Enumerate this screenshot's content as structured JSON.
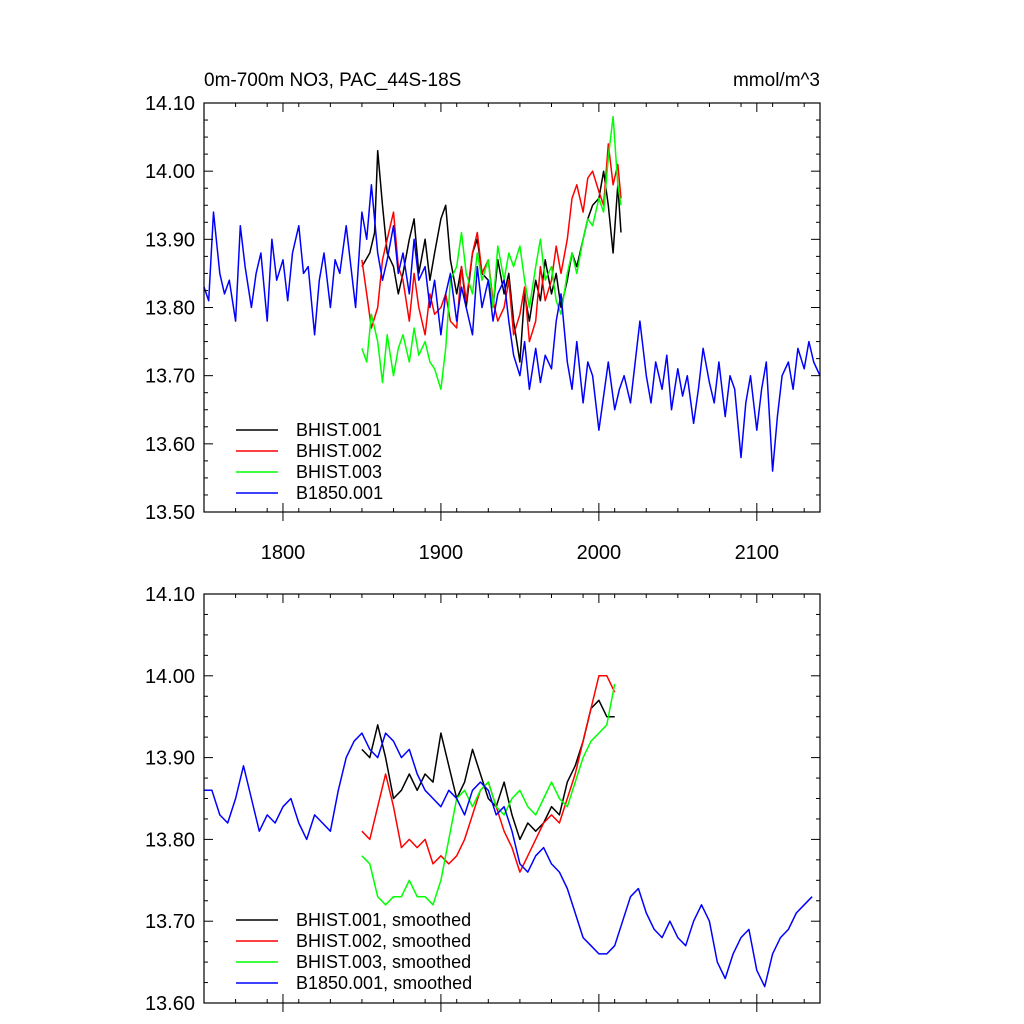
{
  "chart_data": [
    {
      "type": "line",
      "title": "0m-700m NO3, PAC_44S-18S",
      "units": "mmol/m^3",
      "xlim": [
        1750,
        2140
      ],
      "ylim": [
        13.5,
        14.1
      ],
      "xticks": [
        1800,
        1900,
        2000,
        2100
      ],
      "xticklabels": [
        "1800",
        "1900",
        "2000",
        "2100"
      ],
      "yticks": [
        13.5,
        13.6,
        13.7,
        13.8,
        13.9,
        14.0,
        14.1
      ],
      "yticklabels": [
        "13.50",
        "13.60",
        "13.70",
        "13.80",
        "13.90",
        "14.00",
        "14.10"
      ],
      "legend_position": "bottom-left",
      "series": [
        {
          "name": "BHIST.001",
          "color": "#000000",
          "x": [
            1850,
            1855,
            1858,
            1860,
            1863,
            1866,
            1870,
            1873,
            1876,
            1880,
            1883,
            1886,
            1890,
            1893,
            1896,
            1900,
            1903,
            1906,
            1910,
            1913,
            1916,
            1920,
            1923,
            1926,
            1930,
            1933,
            1936,
            1940,
            1943,
            1946,
            1950,
            1953,
            1956,
            1960,
            1963,
            1966,
            1970,
            1973,
            1976,
            1980,
            1983,
            1986,
            1990,
            1993,
            1996,
            2000,
            2003,
            2006,
            2009,
            2012,
            2014
          ],
          "values": [
            13.86,
            13.88,
            13.91,
            14.03,
            13.95,
            13.88,
            13.86,
            13.82,
            13.85,
            13.9,
            13.93,
            13.85,
            13.9,
            13.84,
            13.88,
            13.93,
            13.95,
            13.87,
            13.82,
            13.86,
            13.8,
            13.88,
            13.9,
            13.85,
            13.84,
            13.8,
            13.87,
            13.82,
            13.85,
            13.78,
            13.72,
            13.82,
            13.78,
            13.84,
            13.81,
            13.87,
            13.82,
            13.85,
            13.8,
            13.84,
            13.88,
            13.86,
            13.9,
            13.93,
            13.95,
            13.96,
            14.0,
            13.95,
            13.88,
            13.98,
            13.91
          ]
        },
        {
          "name": "BHIST.002",
          "color": "#ff0000",
          "x": [
            1850,
            1853,
            1856,
            1860,
            1863,
            1866,
            1870,
            1873,
            1876,
            1880,
            1883,
            1886,
            1890,
            1893,
            1896,
            1900,
            1903,
            1906,
            1910,
            1913,
            1916,
            1920,
            1923,
            1926,
            1930,
            1933,
            1936,
            1940,
            1943,
            1946,
            1950,
            1953,
            1956,
            1960,
            1963,
            1966,
            1970,
            1973,
            1976,
            1980,
            1983,
            1986,
            1990,
            1993,
            1996,
            2000,
            2003,
            2006,
            2009,
            2012,
            2014
          ],
          "values": [
            13.87,
            13.82,
            13.77,
            13.8,
            13.87,
            13.9,
            13.94,
            13.86,
            13.84,
            13.78,
            13.85,
            13.8,
            13.76,
            13.82,
            13.79,
            13.8,
            13.82,
            13.78,
            13.77,
            13.86,
            13.81,
            13.88,
            13.91,
            13.85,
            13.87,
            13.81,
            13.78,
            13.8,
            13.84,
            13.76,
            13.79,
            13.83,
            13.75,
            13.78,
            13.86,
            13.81,
            13.84,
            13.89,
            13.85,
            13.9,
            13.96,
            13.98,
            13.94,
            13.99,
            14.0,
            13.97,
            13.95,
            14.04,
            13.98,
            14.01,
            13.96
          ]
        },
        {
          "name": "BHIST.003",
          "color": "#00ff00",
          "x": [
            1850,
            1853,
            1856,
            1860,
            1863,
            1866,
            1870,
            1873,
            1876,
            1880,
            1883,
            1886,
            1890,
            1893,
            1896,
            1900,
            1903,
            1906,
            1910,
            1913,
            1916,
            1920,
            1923,
            1926,
            1930,
            1933,
            1936,
            1940,
            1943,
            1946,
            1950,
            1953,
            1956,
            1960,
            1963,
            1966,
            1970,
            1973,
            1976,
            1980,
            1983,
            1986,
            1990,
            1993,
            1996,
            2000,
            2003,
            2006,
            2009,
            2012,
            2014
          ],
          "values": [
            13.74,
            13.72,
            13.79,
            13.75,
            13.69,
            13.76,
            13.7,
            13.74,
            13.76,
            13.72,
            13.77,
            13.73,
            13.75,
            13.72,
            13.71,
            13.68,
            13.74,
            13.84,
            13.86,
            13.91,
            13.85,
            13.82,
            13.88,
            13.84,
            13.87,
            13.8,
            13.89,
            13.84,
            13.88,
            13.86,
            13.89,
            13.84,
            13.8,
            13.86,
            13.9,
            13.84,
            13.86,
            13.81,
            13.79,
            13.85,
            13.88,
            13.85,
            13.9,
            13.93,
            13.92,
            13.96,
            13.94,
            14.02,
            14.08,
            13.98,
            13.95
          ]
        },
        {
          "name": "B1850.001",
          "color": "#0000ff",
          "x": [
            1750,
            1753,
            1756,
            1760,
            1763,
            1766,
            1770,
            1773,
            1776,
            1780,
            1783,
            1786,
            1790,
            1793,
            1796,
            1800,
            1803,
            1806,
            1810,
            1813,
            1816,
            1820,
            1823,
            1826,
            1830,
            1833,
            1836,
            1840,
            1843,
            1846,
            1850,
            1853,
            1856,
            1860,
            1863,
            1866,
            1870,
            1873,
            1876,
            1880,
            1883,
            1886,
            1890,
            1893,
            1896,
            1900,
            1903,
            1906,
            1910,
            1913,
            1916,
            1920,
            1923,
            1926,
            1930,
            1933,
            1936,
            1940,
            1943,
            1946,
            1950,
            1953,
            1956,
            1960,
            1963,
            1966,
            1970,
            1973,
            1976,
            1980,
            1983,
            1986,
            1990,
            1993,
            1996,
            2000,
            2003,
            2006,
            2010,
            2013,
            2016,
            2020,
            2023,
            2026,
            2030,
            2033,
            2036,
            2040,
            2043,
            2046,
            2050,
            2053,
            2056,
            2060,
            2063,
            2066,
            2070,
            2073,
            2076,
            2080,
            2083,
            2086,
            2090,
            2093,
            2096,
            2100,
            2103,
            2106,
            2110,
            2113,
            2116,
            2120,
            2123,
            2126,
            2130,
            2133,
            2136,
            2140
          ],
          "values": [
            13.83,
            13.81,
            13.94,
            13.85,
            13.82,
            13.84,
            13.78,
            13.92,
            13.86,
            13.8,
            13.85,
            13.88,
            13.78,
            13.9,
            13.84,
            13.87,
            13.81,
            13.88,
            13.92,
            13.85,
            13.86,
            13.76,
            13.84,
            13.88,
            13.8,
            13.87,
            13.85,
            13.92,
            13.86,
            13.8,
            13.94,
            13.9,
            13.98,
            13.88,
            13.84,
            13.87,
            13.92,
            13.85,
            13.88,
            13.82,
            13.9,
            13.84,
            13.86,
            13.8,
            13.84,
            13.76,
            13.82,
            13.85,
            13.78,
            13.83,
            13.8,
            13.76,
            13.86,
            13.8,
            13.84,
            13.78,
            13.82,
            13.84,
            13.78,
            13.73,
            13.7,
            13.75,
            13.68,
            13.74,
            13.69,
            13.73,
            13.71,
            13.78,
            13.82,
            13.72,
            13.68,
            13.75,
            13.66,
            13.72,
            13.7,
            13.62,
            13.67,
            13.72,
            13.65,
            13.68,
            13.7,
            13.66,
            13.72,
            13.78,
            13.7,
            13.66,
            13.72,
            13.68,
            13.73,
            13.65,
            13.71,
            13.67,
            13.7,
            13.63,
            13.68,
            13.74,
            13.69,
            13.66,
            13.72,
            13.64,
            13.7,
            13.68,
            13.58,
            13.66,
            13.7,
            13.62,
            13.68,
            13.72,
            13.56,
            13.64,
            13.7,
            13.72,
            13.68,
            13.74,
            13.71,
            13.75,
            13.72,
            13.7
          ]
        }
      ]
    },
    {
      "type": "line",
      "title": "",
      "xlim": [
        1750,
        2140
      ],
      "ylim": [
        13.6,
        14.1
      ],
      "yticks": [
        13.6,
        13.7,
        13.8,
        13.9,
        14.0,
        14.1
      ],
      "yticklabels": [
        "13.60",
        "13.70",
        "13.80",
        "13.90",
        "14.00",
        "14.10"
      ],
      "xticks": [
        1800,
        1900,
        2000,
        2100
      ],
      "legend_position": "bottom-left",
      "series": [
        {
          "name": "BHIST.001, smoothed",
          "color": "#000000",
          "x": [
            1850,
            1855,
            1860,
            1865,
            1870,
            1875,
            1880,
            1885,
            1890,
            1895,
            1900,
            1905,
            1910,
            1915,
            1920,
            1925,
            1930,
            1935,
            1940,
            1945,
            1950,
            1955,
            1960,
            1965,
            1970,
            1975,
            1980,
            1985,
            1990,
            1995,
            2000,
            2005,
            2010
          ],
          "values": [
            13.91,
            13.9,
            13.94,
            13.9,
            13.85,
            13.86,
            13.88,
            13.86,
            13.88,
            13.87,
            13.93,
            13.89,
            13.85,
            13.87,
            13.91,
            13.88,
            13.85,
            13.84,
            13.87,
            13.83,
            13.8,
            13.82,
            13.81,
            13.82,
            13.84,
            13.83,
            13.87,
            13.89,
            13.92,
            13.96,
            13.97,
            13.95,
            13.95
          ]
        },
        {
          "name": "BHIST.002, smoothed",
          "color": "#ff0000",
          "x": [
            1850,
            1855,
            1860,
            1865,
            1870,
            1875,
            1880,
            1885,
            1890,
            1895,
            1900,
            1905,
            1910,
            1915,
            1920,
            1925,
            1930,
            1935,
            1940,
            1945,
            1950,
            1955,
            1960,
            1965,
            1970,
            1975,
            1980,
            1985,
            1990,
            1995,
            2000,
            2005,
            2010
          ],
          "values": [
            13.81,
            13.8,
            13.84,
            13.88,
            13.84,
            13.79,
            13.8,
            13.79,
            13.8,
            13.77,
            13.78,
            13.77,
            13.78,
            13.8,
            13.83,
            13.86,
            13.87,
            13.84,
            13.81,
            13.79,
            13.76,
            13.78,
            13.8,
            13.82,
            13.83,
            13.82,
            13.85,
            13.88,
            13.92,
            13.96,
            14.0,
            14.0,
            13.98
          ]
        },
        {
          "name": "BHIST.003, smoothed",
          "color": "#00ff00",
          "x": [
            1850,
            1855,
            1860,
            1865,
            1870,
            1875,
            1880,
            1885,
            1890,
            1895,
            1900,
            1905,
            1910,
            1915,
            1920,
            1925,
            1930,
            1935,
            1940,
            1945,
            1950,
            1955,
            1960,
            1965,
            1970,
            1975,
            1980,
            1985,
            1990,
            1995,
            2000,
            2005,
            2010
          ],
          "values": [
            13.78,
            13.77,
            13.73,
            13.72,
            13.73,
            13.73,
            13.75,
            13.73,
            13.73,
            13.72,
            13.75,
            13.8,
            13.85,
            13.86,
            13.84,
            13.86,
            13.87,
            13.84,
            13.83,
            13.85,
            13.86,
            13.84,
            13.83,
            13.85,
            13.87,
            13.85,
            13.84,
            13.87,
            13.9,
            13.92,
            13.93,
            13.94,
            13.99
          ]
        },
        {
          "name": "B1850.001, smoothed",
          "color": "#0000ff",
          "x": [
            1750,
            1755,
            1760,
            1765,
            1770,
            1775,
            1780,
            1785,
            1790,
            1795,
            1800,
            1805,
            1810,
            1815,
            1820,
            1825,
            1830,
            1835,
            1840,
            1845,
            1850,
            1855,
            1860,
            1865,
            1870,
            1875,
            1880,
            1885,
            1890,
            1895,
            1900,
            1905,
            1910,
            1915,
            1920,
            1925,
            1930,
            1935,
            1940,
            1945,
            1950,
            1955,
            1960,
            1965,
            1970,
            1975,
            1980,
            1985,
            1990,
            1995,
            2000,
            2005,
            2010,
            2015,
            2020,
            2025,
            2030,
            2035,
            2040,
            2045,
            2050,
            2055,
            2060,
            2065,
            2070,
            2075,
            2080,
            2085,
            2090,
            2095,
            2100,
            2105,
            2110,
            2115,
            2120,
            2125,
            2130,
            2135
          ],
          "values": [
            13.86,
            13.86,
            13.83,
            13.82,
            13.85,
            13.89,
            13.85,
            13.81,
            13.83,
            13.82,
            13.84,
            13.85,
            13.82,
            13.8,
            13.83,
            13.82,
            13.81,
            13.86,
            13.9,
            13.92,
            13.93,
            13.91,
            13.9,
            13.93,
            13.92,
            13.9,
            13.91,
            13.88,
            13.86,
            13.85,
            13.84,
            13.86,
            13.85,
            13.83,
            13.86,
            13.87,
            13.86,
            13.83,
            13.84,
            13.81,
            13.77,
            13.76,
            13.78,
            13.79,
            13.77,
            13.76,
            13.74,
            13.71,
            13.68,
            13.67,
            13.66,
            13.66,
            13.67,
            13.7,
            13.73,
            13.74,
            13.71,
            13.69,
            13.68,
            13.7,
            13.68,
            13.67,
            13.7,
            13.72,
            13.7,
            13.65,
            13.63,
            13.66,
            13.68,
            13.69,
            13.64,
            13.62,
            13.66,
            13.68,
            13.69,
            13.71,
            13.72,
            13.73
          ]
        }
      ]
    }
  ]
}
